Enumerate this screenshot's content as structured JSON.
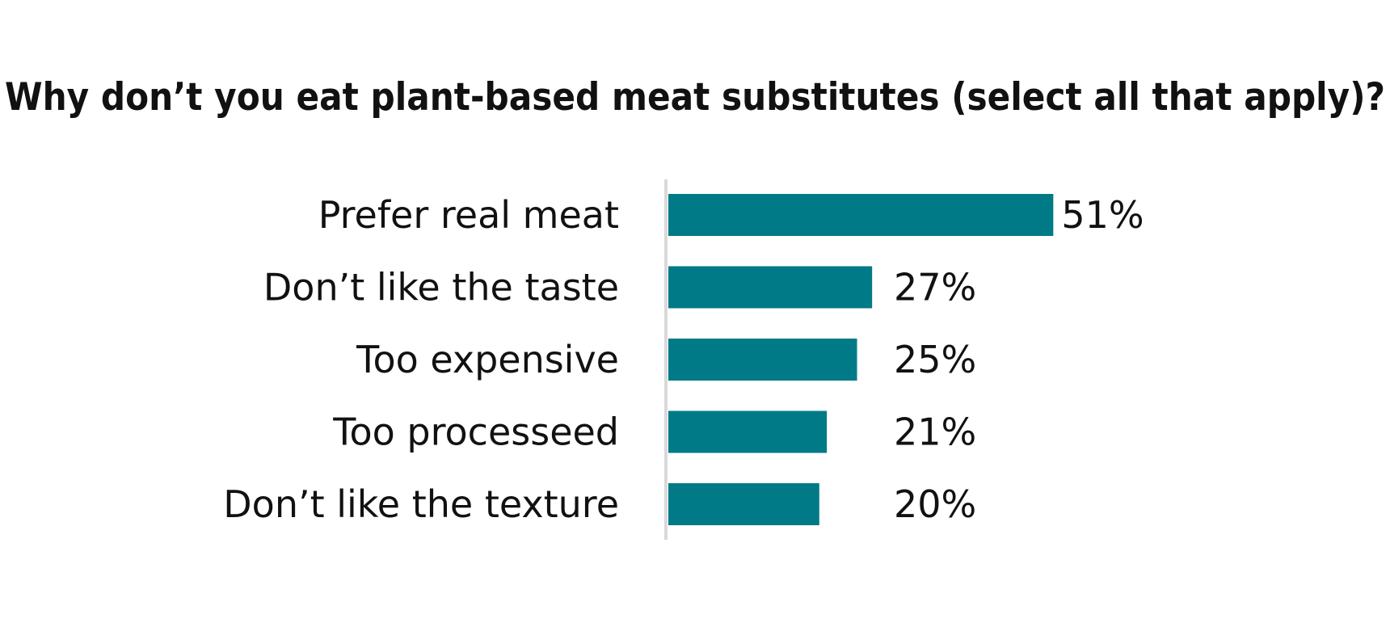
{
  "chart_data": {
    "type": "bar",
    "orientation": "horizontal",
    "title": "Why don’t you eat plant-based meat substitutes (select all that apply)?",
    "xlabel": "",
    "ylabel": "",
    "categories": [
      "Prefer real meat",
      "Don’t like the taste",
      "Too expensive",
      "Too processeed",
      "Don’t like the texture"
    ],
    "values": [
      51,
      27,
      25,
      21,
      20
    ],
    "value_labels": [
      "51%",
      "27%",
      "25%",
      "21%",
      "20%"
    ],
    "unit": "%",
    "xlim": [
      0,
      100
    ],
    "grid": false,
    "legend": "none",
    "colors": {
      "bar": "#007a87",
      "axis": "#d9d9d9",
      "text": "#111111"
    }
  }
}
